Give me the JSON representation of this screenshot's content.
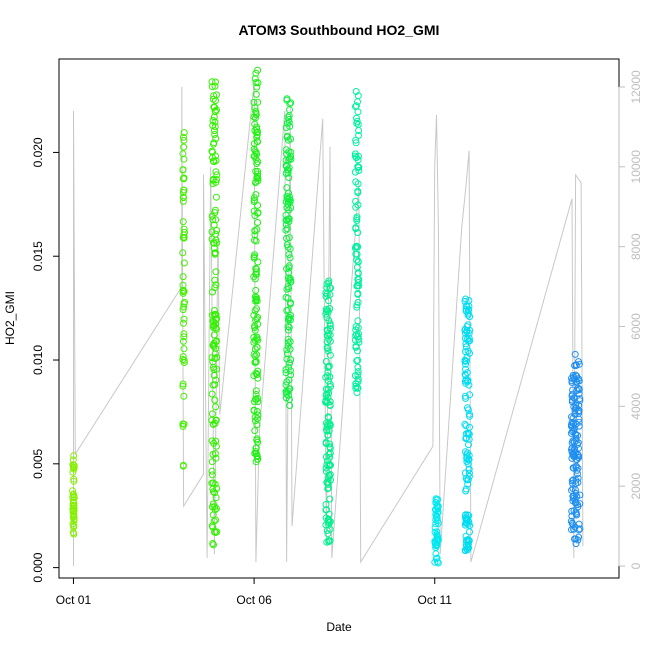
{
  "chart_data": {
    "type": "scatter",
    "title": "ATOM3 Southbound HO2_GMI",
    "xlabel": "Date",
    "ylabel": "HO2_GMI",
    "x_ticks": [
      {
        "label": "Oct 01",
        "day": 1
      },
      {
        "label": "Oct 06",
        "day": 6
      },
      {
        "label": "Oct 11",
        "day": 11
      }
    ],
    "xlim": [
      0.6,
      16.1
    ],
    "ylim": [
      -0.0005,
      0.0245
    ],
    "y_ticks": [
      0.0,
      0.005,
      0.01,
      0.015,
      0.02
    ],
    "y_tick_labels": [
      "0.000",
      "0.005",
      "0.010",
      "0.015",
      "0.020"
    ],
    "right_axis": {
      "ylim": [
        -300,
        12700
      ],
      "ticks": [
        0,
        2000,
        4000,
        6000,
        8000,
        10000,
        12000
      ],
      "tick_labels": [
        "0",
        "2000",
        "4000",
        "6000",
        "8000",
        "10000",
        "12000"
      ],
      "color": "#bebebe"
    },
    "grid": false,
    "legend": "none",
    "point_style": "open-circle",
    "color_scale": [
      "#7cfc00",
      "#00ff66",
      "#00e5ff",
      "#1e90ff"
    ],
    "clusters": [
      {
        "day": 1.0,
        "width": 0.05,
        "ymin": 0.0016,
        "ymax": 0.0054,
        "count": 40,
        "color": "#84f000"
      },
      {
        "day": 4.05,
        "width": 0.05,
        "ymin": 0.0048,
        "ymax": 0.021,
        "count": 55,
        "color": "#44f000"
      },
      {
        "day": 4.9,
        "width": 0.14,
        "ymin": 0.001,
        "ymax": 0.0236,
        "count": 140,
        "color": "#33f000"
      },
      {
        "day": 6.05,
        "width": 0.12,
        "ymin": 0.005,
        "ymax": 0.024,
        "count": 140,
        "color": "#22f014"
      },
      {
        "day": 6.95,
        "width": 0.14,
        "ymin": 0.0078,
        "ymax": 0.023,
        "count": 120,
        "color": "#10f03c"
      },
      {
        "day": 8.05,
        "width": 0.14,
        "ymin": 0.0012,
        "ymax": 0.0142,
        "count": 120,
        "color": "#00f08c"
      },
      {
        "day": 8.85,
        "width": 0.1,
        "ymin": 0.0084,
        "ymax": 0.023,
        "count": 90,
        "color": "#00f0a0"
      },
      {
        "day": 11.05,
        "width": 0.1,
        "ymin": 0.0002,
        "ymax": 0.0036,
        "count": 50,
        "color": "#00e8f0"
      },
      {
        "day": 11.9,
        "width": 0.14,
        "ymin": 0.0008,
        "ymax": 0.013,
        "count": 120,
        "color": "#00dcf0"
      },
      {
        "day": 14.9,
        "width": 0.24,
        "ymin": 0.001,
        "ymax": 0.0103,
        "count": 140,
        "color": "#1e8ff0"
      }
    ],
    "altitude_trace": [
      [
        1.0,
        0
      ],
      [
        1.0,
        11400
      ],
      [
        1.05,
        2800
      ],
      [
        4.0,
        7000
      ],
      [
        4.0,
        12000
      ],
      [
        4.05,
        1500
      ],
      [
        4.6,
        2300
      ],
      [
        4.6,
        9800
      ],
      [
        4.7,
        200
      ],
      [
        4.8,
        10000
      ],
      [
        4.9,
        300
      ],
      [
        5.0,
        8400
      ],
      [
        5.05,
        3800
      ],
      [
        6.0,
        12100
      ],
      [
        6.05,
        100
      ],
      [
        6.15,
        3400
      ],
      [
        6.85,
        11400
      ],
      [
        6.9,
        100
      ],
      [
        7.0,
        11500
      ],
      [
        7.05,
        1000
      ],
      [
        7.9,
        11200
      ],
      [
        8.0,
        600
      ],
      [
        8.1,
        10500
      ],
      [
        8.15,
        200
      ],
      [
        8.9,
        9600
      ],
      [
        8.95,
        100
      ],
      [
        10.95,
        3000
      ],
      [
        11.0,
        10000
      ],
      [
        11.05,
        11300
      ],
      [
        11.1,
        8500
      ],
      [
        11.15,
        300
      ],
      [
        11.75,
        8500
      ],
      [
        11.85,
        9400
      ],
      [
        11.95,
        10400
      ],
      [
        12.0,
        100
      ],
      [
        14.8,
        9200
      ],
      [
        14.85,
        200
      ],
      [
        14.9,
        9800
      ],
      [
        15.05,
        9600
      ],
      [
        15.1,
        500
      ]
    ]
  }
}
